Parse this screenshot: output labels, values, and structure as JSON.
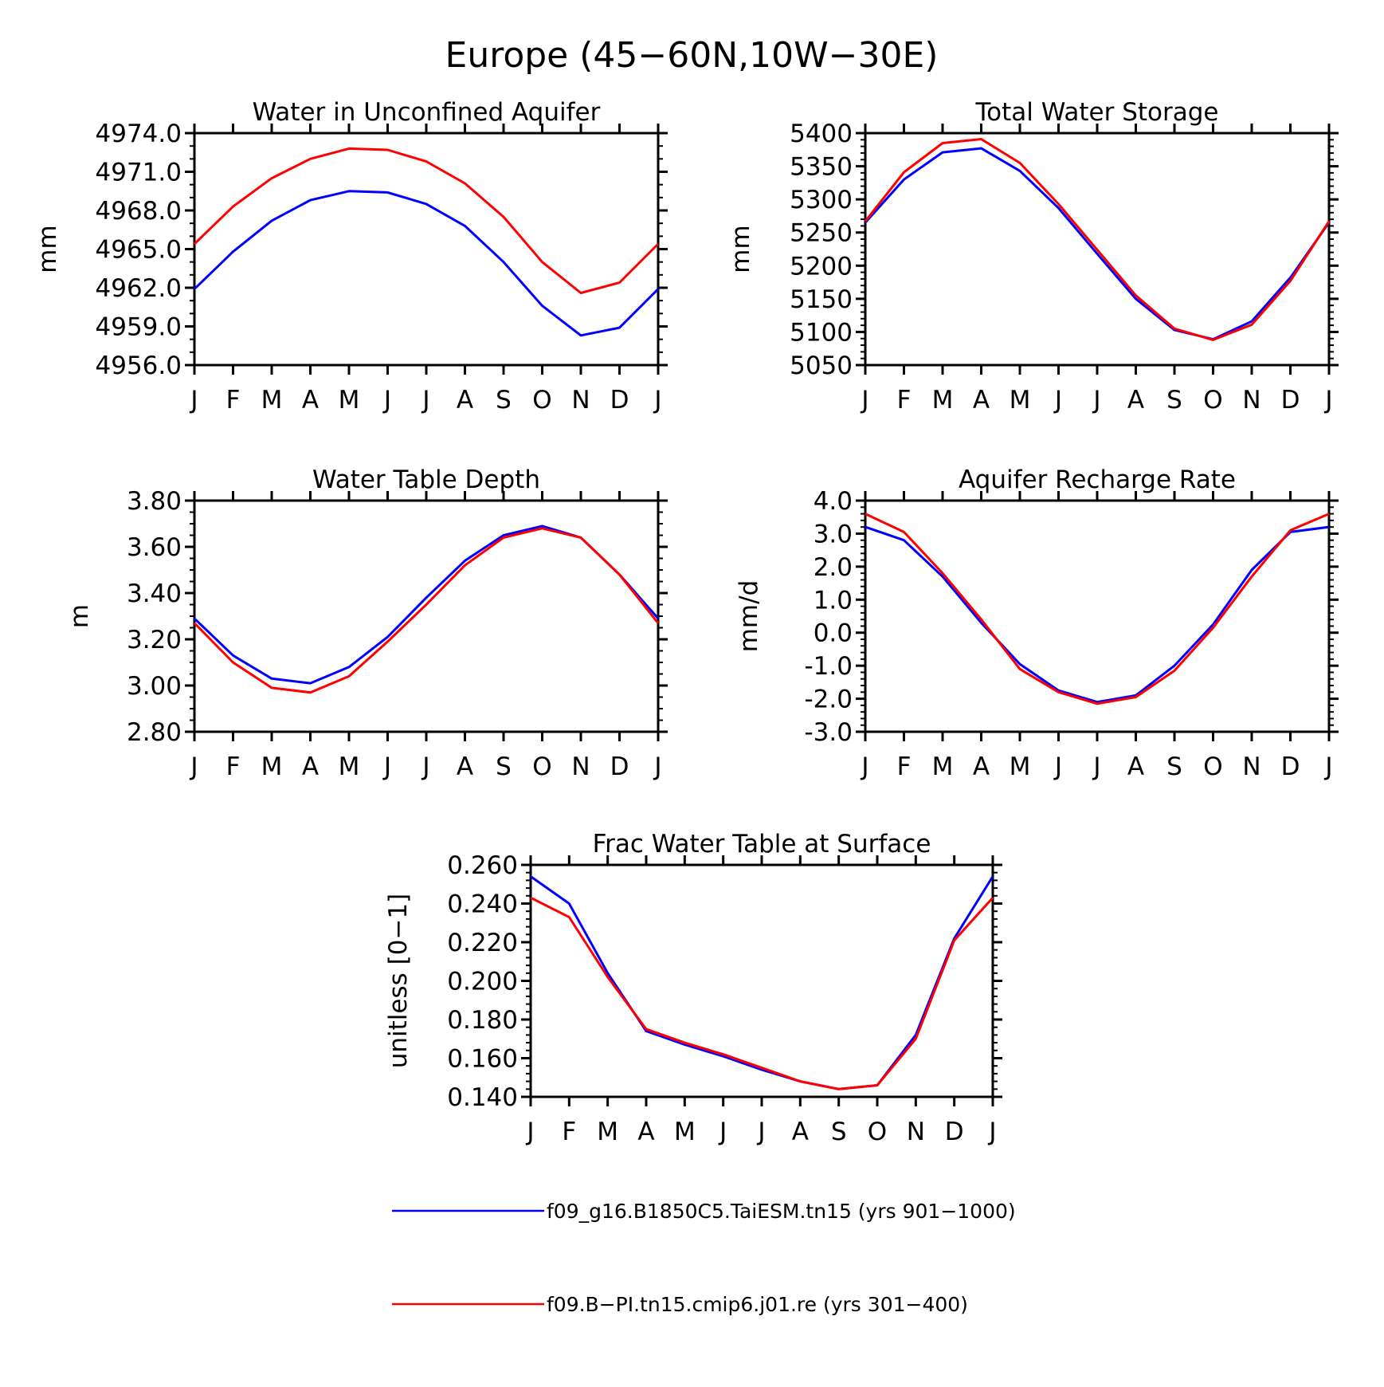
{
  "figure": {
    "title": "Europe (45−60N,10W−30E)"
  },
  "legend": [
    {
      "label": "f09_g16.B1850C5.TaiESM.tn15 (yrs 901−1000)",
      "color": "#0000ff"
    },
    {
      "label": "f09.B−PI.tn15.cmip6.j01.re (yrs 301−400)",
      "color": "#ff0000"
    }
  ],
  "chart_data": [
    {
      "type": "line",
      "title": "Water in Unconfined Aquifer",
      "ylabel": "mm",
      "xlabel": "",
      "categories": [
        "J",
        "F",
        "M",
        "A",
        "M",
        "J",
        "J",
        "A",
        "S",
        "O",
        "N",
        "D",
        "J"
      ],
      "ylim": [
        4956.0,
        4974.0
      ],
      "yticks": [
        4956.0,
        4959.0,
        4962.0,
        4965.0,
        4968.0,
        4971.0,
        4974.0
      ],
      "ytick_labels": [
        "4956.0",
        "4959.0",
        "4962.0",
        "4965.0",
        "4968.0",
        "4971.0",
        "4974.0"
      ],
      "y_minor_step": 1.0,
      "series": [
        {
          "color": "#0000ff",
          "values": [
            4961.9,
            4964.8,
            4967.2,
            4968.8,
            4969.5,
            4969.4,
            4968.5,
            4966.8,
            4964.0,
            4960.6,
            4958.3,
            4958.9,
            4961.9
          ]
        },
        {
          "color": "#ff0000",
          "values": [
            4965.4,
            4968.3,
            4970.5,
            4972.0,
            4972.8,
            4972.7,
            4971.8,
            4970.1,
            4967.5,
            4964.0,
            4961.6,
            4962.4,
            4965.4
          ]
        }
      ]
    },
    {
      "type": "line",
      "title": "Total Water Storage",
      "ylabel": "mm",
      "xlabel": "",
      "categories": [
        "J",
        "F",
        "M",
        "A",
        "M",
        "J",
        "J",
        "A",
        "S",
        "O",
        "N",
        "D",
        "J"
      ],
      "ylim": [
        5050,
        5400
      ],
      "yticks": [
        5050,
        5100,
        5150,
        5200,
        5250,
        5300,
        5350,
        5400
      ],
      "ytick_labels": [
        "5050",
        "5100",
        "5150",
        "5200",
        "5250",
        "5300",
        "5350",
        "5400"
      ],
      "y_minor_step": 10,
      "series": [
        {
          "color": "#0000ff",
          "values": [
            5265,
            5330,
            5371,
            5377,
            5343,
            5287,
            5218,
            5150,
            5103,
            5089,
            5116,
            5182,
            5265
          ]
        },
        {
          "color": "#ff0000",
          "values": [
            5267,
            5341,
            5385,
            5391,
            5355,
            5293,
            5224,
            5155,
            5105,
            5088,
            5111,
            5177,
            5267
          ]
        }
      ]
    },
    {
      "type": "line",
      "title": "Water Table Depth",
      "ylabel": "m",
      "xlabel": "",
      "categories": [
        "J",
        "F",
        "M",
        "A",
        "M",
        "J",
        "J",
        "A",
        "S",
        "O",
        "N",
        "D",
        "J"
      ],
      "ylim": [
        2.8,
        3.8
      ],
      "yticks": [
        2.8,
        3.0,
        3.2,
        3.4,
        3.6,
        3.8
      ],
      "ytick_labels": [
        "2.80",
        "3.00",
        "3.20",
        "3.40",
        "3.60",
        "3.80"
      ],
      "y_minor_step": 0.05,
      "series": [
        {
          "color": "#0000ff",
          "values": [
            3.29,
            3.13,
            3.03,
            3.01,
            3.08,
            3.21,
            3.38,
            3.54,
            3.65,
            3.69,
            3.64,
            3.48,
            3.29
          ]
        },
        {
          "color": "#ff0000",
          "values": [
            3.27,
            3.1,
            2.99,
            2.97,
            3.04,
            3.19,
            3.35,
            3.52,
            3.64,
            3.68,
            3.64,
            3.48,
            3.27
          ]
        }
      ]
    },
    {
      "type": "line",
      "title": "Aquifer Recharge Rate",
      "ylabel": "mm/d",
      "xlabel": "",
      "categories": [
        "J",
        "F",
        "M",
        "A",
        "M",
        "J",
        "J",
        "A",
        "S",
        "O",
        "N",
        "D",
        "J"
      ],
      "ylim": [
        -3.0,
        4.0
      ],
      "yticks": [
        -3.0,
        -2.0,
        -1.0,
        0.0,
        1.0,
        2.0,
        3.0,
        4.0
      ],
      "ytick_labels": [
        "-3.0",
        "-2.0",
        "-1.0",
        "0.0",
        "1.0",
        "2.0",
        "3.0",
        "4.0"
      ],
      "y_minor_step": 0.2,
      "series": [
        {
          "color": "#0000ff",
          "values": [
            3.2,
            2.8,
            1.7,
            0.3,
            -0.95,
            -1.75,
            -2.1,
            -1.9,
            -1.0,
            0.25,
            1.9,
            3.05,
            3.2
          ]
        },
        {
          "color": "#ff0000",
          "values": [
            3.6,
            3.05,
            1.8,
            0.4,
            -1.1,
            -1.8,
            -2.15,
            -1.95,
            -1.15,
            0.15,
            1.7,
            3.1,
            3.6
          ]
        }
      ]
    },
    {
      "type": "line",
      "title": "Frac Water Table at Surface",
      "ylabel": "unitless [0−1]",
      "xlabel": "",
      "categories": [
        "J",
        "F",
        "M",
        "A",
        "M",
        "J",
        "J",
        "A",
        "S",
        "O",
        "N",
        "D",
        "J"
      ],
      "ylim": [
        0.14,
        0.26
      ],
      "yticks": [
        0.14,
        0.16,
        0.18,
        0.2,
        0.22,
        0.24,
        0.26
      ],
      "ytick_labels": [
        "0.140",
        "0.160",
        "0.180",
        "0.200",
        "0.220",
        "0.240",
        "0.260"
      ],
      "y_minor_step": 0.004,
      "series": [
        {
          "color": "#0000ff",
          "values": [
            0.254,
            0.24,
            0.204,
            0.174,
            0.167,
            0.161,
            0.154,
            0.148,
            0.144,
            0.146,
            0.172,
            0.222,
            0.254
          ]
        },
        {
          "color": "#ff0000",
          "values": [
            0.243,
            0.233,
            0.202,
            0.175,
            0.168,
            0.162,
            0.155,
            0.148,
            0.144,
            0.146,
            0.17,
            0.221,
            0.243
          ]
        }
      ]
    }
  ]
}
